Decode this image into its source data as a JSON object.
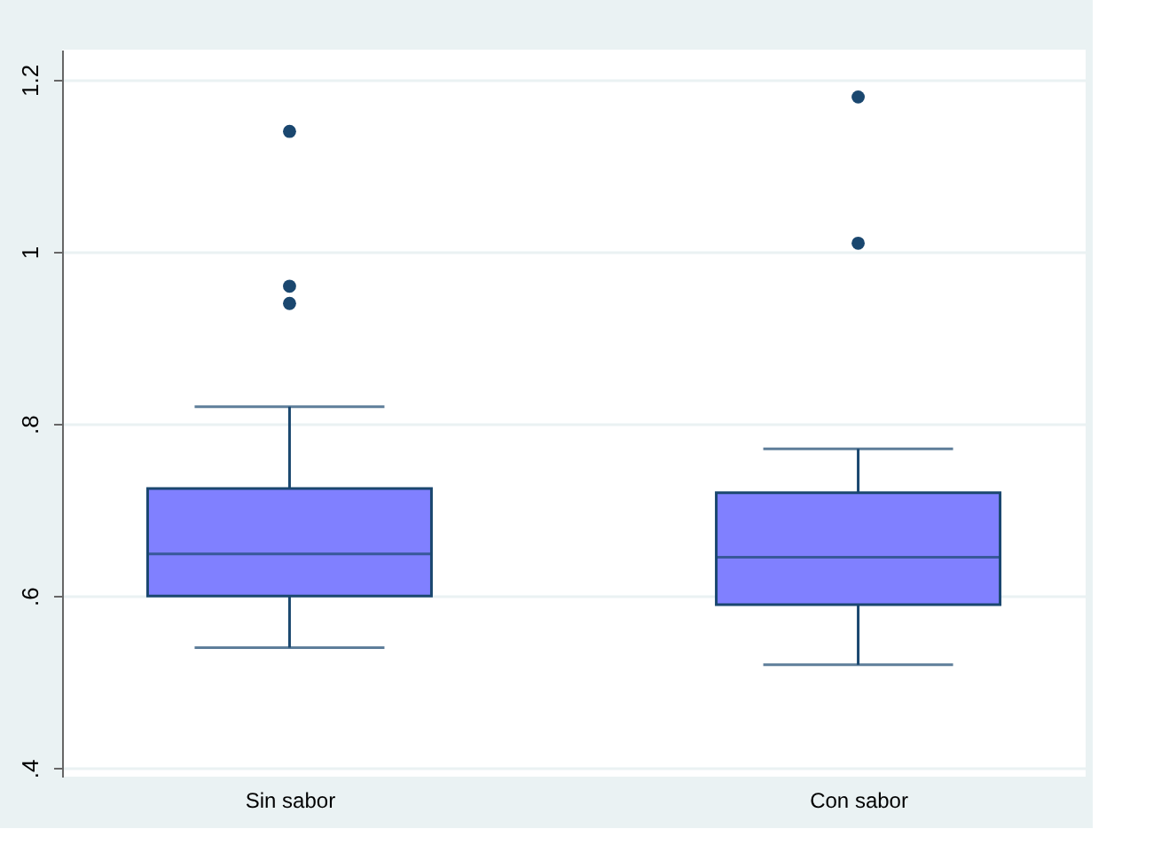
{
  "chart_data": {
    "type": "box",
    "categories": [
      "Sin sabor",
      "Con sabor"
    ],
    "boxes": [
      {
        "low": 0.54,
        "q1": 0.6,
        "median": 0.649,
        "q3": 0.725,
        "high": 0.82,
        "outliers": [
          1.14,
          0.96,
          0.94
        ]
      },
      {
        "low": 0.52,
        "q1": 0.59,
        "median": 0.645,
        "q3": 0.72,
        "high": 0.771,
        "outliers": [
          1.18,
          1.01
        ]
      }
    ],
    "color": "#8080ff",
    "ylim": [
      0.39,
      1.235
    ],
    "yticks": [
      {
        "value": 0.4,
        "label": ".4"
      },
      {
        "value": 0.6,
        "label": ".6"
      },
      {
        "value": 0.8,
        "label": ".8"
      },
      {
        "value": 1,
        "label": "1"
      },
      {
        "value": 1.2,
        "label": "1.2"
      }
    ],
    "grid": "y"
  }
}
